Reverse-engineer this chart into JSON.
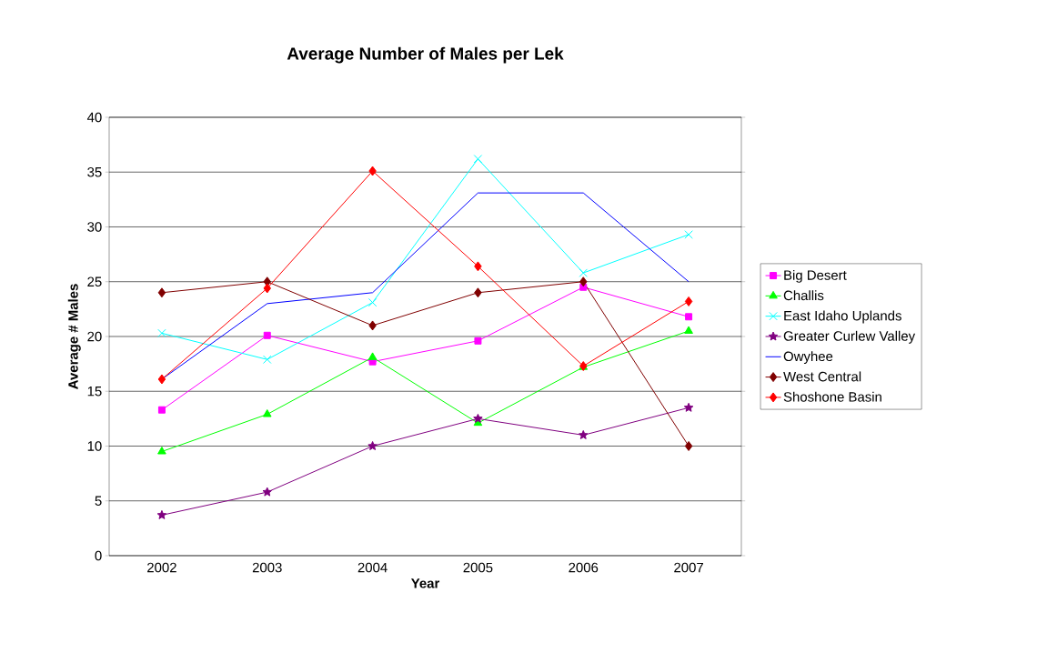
{
  "chart_data": {
    "type": "line",
    "title": "Average Number of Males per Lek",
    "xlabel": "Year",
    "ylabel": "Average # Males",
    "categories": [
      "2002",
      "2003",
      "2004",
      "2005",
      "2006",
      "2007"
    ],
    "ylim": [
      0,
      40
    ],
    "yticks": [
      0,
      5,
      10,
      15,
      20,
      25,
      30,
      35,
      40
    ],
    "grid": "y",
    "legend": "right",
    "series": [
      {
        "name": "Big Desert",
        "color": "#ff00ff",
        "marker": "square",
        "values": [
          13.3,
          20.1,
          17.7,
          19.6,
          24.5,
          21.8
        ]
      },
      {
        "name": "Challis",
        "color": "#00ff00",
        "marker": "triangle",
        "values": [
          9.5,
          12.9,
          18.1,
          12.1,
          17.2,
          20.5
        ]
      },
      {
        "name": "East Idaho Uplands",
        "color": "#00ffff",
        "marker": "cross",
        "values": [
          20.3,
          17.9,
          23.1,
          36.2,
          25.8,
          29.3
        ]
      },
      {
        "name": "Greater Curlew Valley",
        "color": "#800080",
        "marker": "star",
        "values": [
          3.7,
          5.8,
          10.0,
          12.5,
          11.0,
          13.5
        ]
      },
      {
        "name": "Owyhee",
        "color": "#0000ff",
        "marker": "none",
        "values": [
          16.1,
          23.0,
          24.0,
          33.1,
          33.1,
          25.0
        ]
      },
      {
        "name": "West Central",
        "color": "#800000",
        "marker": "diamond",
        "values": [
          24.0,
          25.0,
          21.0,
          24.0,
          25.0,
          10.0
        ]
      },
      {
        "name": "Shoshone Basin",
        "color": "#ff0000",
        "marker": "diamond",
        "values": [
          16.1,
          24.4,
          35.1,
          26.4,
          17.3,
          23.2
        ]
      }
    ]
  }
}
